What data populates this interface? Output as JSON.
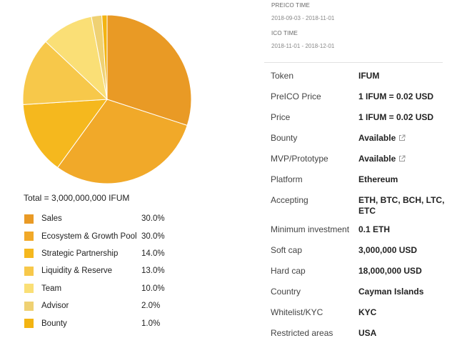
{
  "chart_data": {
    "type": "pie",
    "total_text": "Total = 3,000,000,000 IFUM",
    "slices": [
      {
        "name": "Sales",
        "percent_text": "30.0%",
        "value": 30.0,
        "color": "#E99A25"
      },
      {
        "name": "Ecosystem & Growth Pool",
        "percent_text": "30.0%",
        "value": 30.0,
        "color": "#F1A929"
      },
      {
        "name": "Strategic Partnership",
        "percent_text": "14.0%",
        "value": 14.0,
        "color": "#F5B81E"
      },
      {
        "name": "Liquidity & Reserve",
        "percent_text": "13.0%",
        "value": 13.0,
        "color": "#F7C84A"
      },
      {
        "name": "Team",
        "percent_text": "10.0%",
        "value": 10.0,
        "color": "#FADF76"
      },
      {
        "name": "Advisor",
        "percent_text": "2.0%",
        "value": 2.0,
        "color": "#EFD173"
      },
      {
        "name": "Bounty",
        "percent_text": "1.0%",
        "value": 1.0,
        "color": "#F3B412"
      }
    ]
  },
  "times": {
    "preico_title": "PREICO TIME",
    "preico_value": "2018-09-03 - 2018-11-01",
    "ico_title": "ICO TIME",
    "ico_value": "2018-11-01 - 2018-12-01"
  },
  "details": [
    {
      "label": "Token",
      "value": "IFUM"
    },
    {
      "label": "PreICO Price",
      "value": "1 IFUM = 0.02 USD"
    },
    {
      "label": "Price",
      "value": "1 IFUM = 0.02 USD"
    },
    {
      "label": "Bounty",
      "value": "Available",
      "icon": "external-link-icon"
    },
    {
      "label": "MVP/Prototype",
      "value": "Available",
      "icon": "external-link-icon"
    },
    {
      "label": "Platform",
      "value": "Ethereum"
    },
    {
      "label": "Accepting",
      "value": "ETH, BTC, BCH, LTC, ETC"
    },
    {
      "label": "Minimum investment",
      "value": "0.1 ETH"
    },
    {
      "label": "Soft cap",
      "value": "3,000,000 USD"
    },
    {
      "label": "Hard cap",
      "value": "18,000,000 USD"
    },
    {
      "label": "Country",
      "value": "Cayman Islands"
    },
    {
      "label": "Whitelist/KYC",
      "value": "KYC"
    },
    {
      "label": "Restricted areas",
      "value": "USA"
    }
  ]
}
